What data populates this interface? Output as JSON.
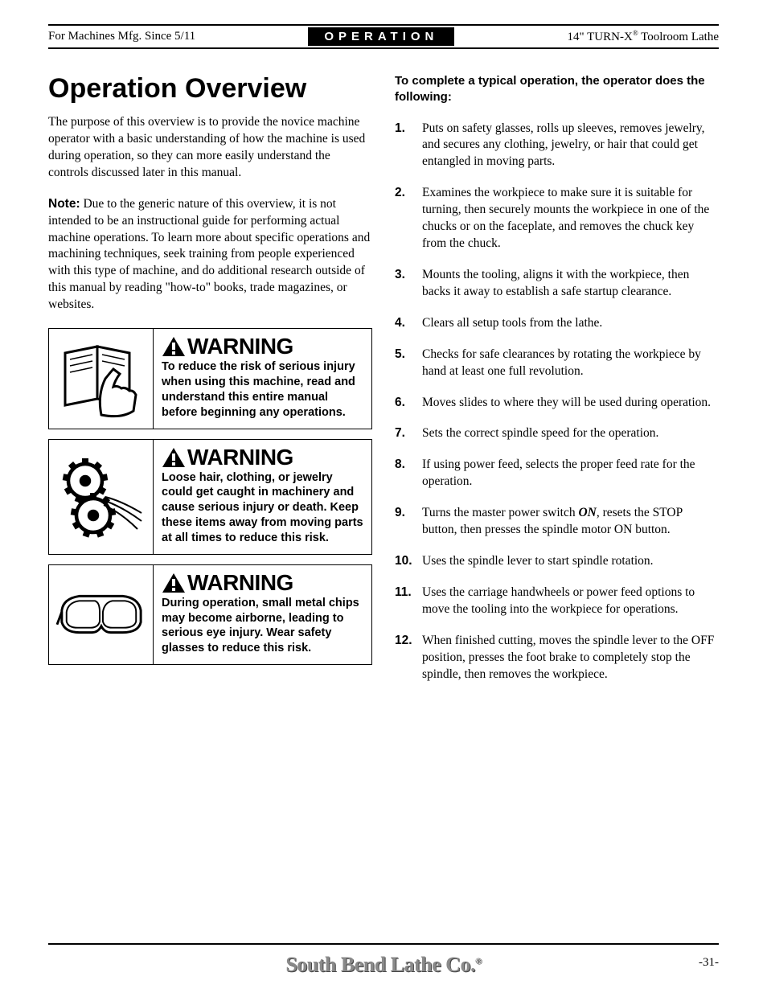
{
  "header": {
    "left": "For Machines Mfg. Since 5/11",
    "center": "OPERATION",
    "right_prefix": "14\" TURN-X",
    "right_suffix": " Toolroom Lathe",
    "reg": "®"
  },
  "title": "Operation Overview",
  "intro_p1": "The purpose of this overview is to provide the novice machine operator with a basic understanding of how the machine is used during operation, so they can more easily understand the controls discussed later in this manual.",
  "note_label": "Note:",
  "note_body": " Due to the generic nature of this overview, it is not intended to be an instructional guide for performing actual machine operations. To learn more about specific operations and machining techniques, seek training from people experienced with this type of machine, and do additional research outside of this manual by reading \"how-to\" books, trade magazines, or websites.",
  "warn_label": "WARNING",
  "warnings": [
    {
      "body": "To reduce the risk of serious injury when using this machine, read and understand this entire manual before beginning any operations."
    },
    {
      "body": "Loose hair, clothing, or jewelry could get caught in machinery and cause serious injury or death. Keep these items away from moving parts at all times to reduce this risk."
    },
    {
      "body": "During operation, small metal chips may become airborne, leading to serious eye injury. Wear safety glasses to reduce this risk."
    }
  ],
  "rcol_lead": "To complete a typical operation, the operator does the following:",
  "steps": [
    "Puts on safety glasses, rolls up sleeves, removes jewelry, and secures any clothing, jewelry, or hair that could get entangled in moving parts.",
    "Examines the workpiece to make sure it is suitable for turning, then securely mounts the workpiece in one of the chucks or on the faceplate, and removes the chuck key from the chuck.",
    "Mounts the tooling, aligns it with the workpiece, then backs it away to establish a safe startup clearance.",
    "Clears all setup tools from the lathe.",
    "Checks for safe clearances by rotating the workpiece by hand at least one full revolution.",
    "Moves slides to where they will be used during operation.",
    "Sets the correct spindle speed for the operation.",
    "If using power feed, selects the proper feed rate for the operation.",
    "Turns the master power switch |ON|, resets the STOP button, then presses the spindle motor ON button.",
    "Uses the spindle lever to start spindle rotation.",
    "Uses the carriage handwheels or power feed options to move the tooling into the workpiece for operations.",
    "When finished cutting, moves the spindle lever to the OFF position, presses the foot brake to completely stop the spindle, then removes the workpiece."
  ],
  "footer": {
    "logo": "South Bend Lathe Co.",
    "reg": "®",
    "pagenum": "-31-"
  }
}
